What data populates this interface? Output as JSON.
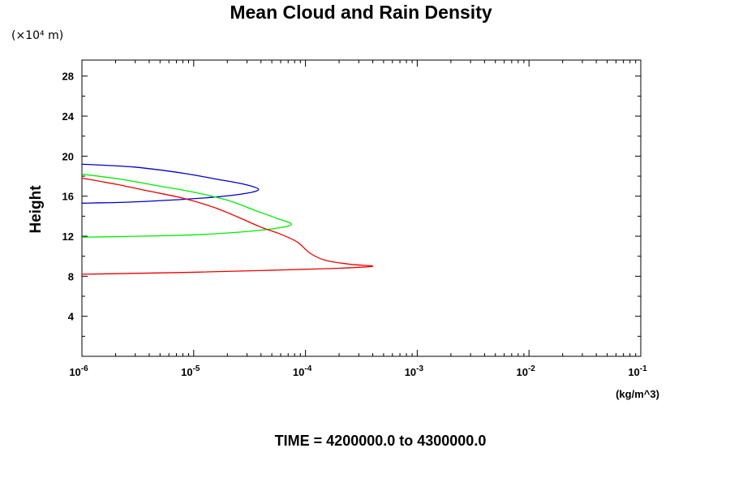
{
  "chart_data": {
    "type": "line",
    "title": "Mean Cloud and Rain Density",
    "y_scale_note": "(×10⁴ m)",
    "ylabel": "Height",
    "xlabel_unit": "(kg/m^3)",
    "x_scale": "log",
    "xlim": [
      1e-06,
      0.1
    ],
    "ylim": [
      0,
      29.6
    ],
    "x_ticks": [
      {
        "base": "10",
        "exp": "-6",
        "value": 1e-06
      },
      {
        "base": "10",
        "exp": "-5",
        "value": 1e-05
      },
      {
        "base": "10",
        "exp": "-4",
        "value": 0.0001
      },
      {
        "base": "10",
        "exp": "-3",
        "value": 0.001
      },
      {
        "base": "10",
        "exp": "-2",
        "value": 0.01
      },
      {
        "base": "10",
        "exp": "-1",
        "value": 0.1
      }
    ],
    "y_ticks": [
      "4",
      "8",
      "12",
      "16",
      "20",
      "24",
      "28"
    ],
    "grid": false,
    "footer": "TIME = 4200000.0 to 4300000.0",
    "series": [
      {
        "color": "#0000cc",
        "points": [
          [
            1e-06,
            19.2
          ],
          [
            3e-06,
            18.9
          ],
          [
            8e-06,
            18.3
          ],
          [
            1.6e-05,
            17.7
          ],
          [
            2.8e-05,
            17.2
          ],
          [
            3.8e-05,
            16.7
          ],
          [
            3e-05,
            16.3
          ],
          [
            1.5e-05,
            15.9
          ],
          [
            6e-06,
            15.6
          ],
          [
            2.5e-06,
            15.4
          ],
          [
            1e-06,
            15.3
          ]
        ]
      },
      {
        "color": "#00ee00",
        "points": [
          [
            1e-06,
            18.2
          ],
          [
            2.2e-06,
            17.7
          ],
          [
            5e-06,
            17.0
          ],
          [
            1e-05,
            16.4
          ],
          [
            2e-05,
            15.6
          ],
          [
            3.5e-05,
            14.6
          ],
          [
            5.5e-05,
            13.8
          ],
          [
            7.5e-05,
            13.2
          ],
          [
            5.5e-05,
            12.8
          ],
          [
            2.5e-05,
            12.4
          ],
          [
            8e-06,
            12.1
          ],
          [
            1e-06,
            11.9
          ]
        ]
      },
      {
        "color": "#ee0000",
        "points": [
          [
            1e-06,
            17.8
          ],
          [
            2e-06,
            17.2
          ],
          [
            4e-06,
            16.5
          ],
          [
            8e-06,
            15.8
          ],
          [
            1.5e-05,
            14.9
          ],
          [
            2.5e-05,
            13.9
          ],
          [
            4e-05,
            12.9
          ],
          [
            6e-05,
            12.2
          ],
          [
            8.5e-05,
            11.4
          ],
          [
            0.00011,
            10.3
          ],
          [
            0.00015,
            9.6
          ],
          [
            0.00025,
            9.2
          ],
          [
            0.0004,
            9.0
          ],
          [
            0.0002,
            8.8
          ],
          [
            5e-05,
            8.6
          ],
          [
            1e-05,
            8.4
          ],
          [
            1e-06,
            8.2
          ]
        ]
      }
    ]
  }
}
